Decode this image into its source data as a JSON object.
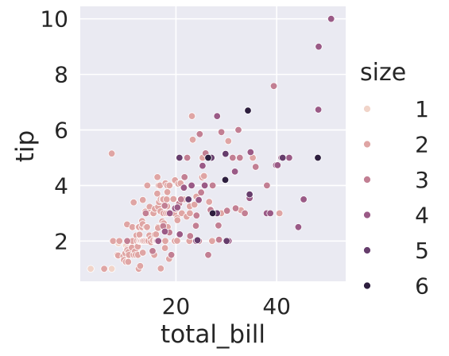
{
  "chart_data": {
    "type": "scatter",
    "title": "",
    "xlabel": "total_bill",
    "ylabel": "tip",
    "xlim": [
      1.0,
      53.7
    ],
    "ylim": [
      0.55,
      10.45
    ],
    "xticks": [
      20,
      40
    ],
    "yticks": [
      2,
      4,
      6,
      8,
      10
    ],
    "grid": true,
    "legend": {
      "title": "size",
      "placement": "right",
      "entries": [
        {
          "label": "1",
          "color": "#f1d4c9"
        },
        {
          "label": "2",
          "color": "#dfa5a4"
        },
        {
          "label": "3",
          "color": "#c27f93"
        },
        {
          "label": "4",
          "color": "#9a5a86"
        },
        {
          "label": "5",
          "color": "#663d6c"
        },
        {
          "label": "6",
          "color": "#2d1e3e"
        }
      ]
    },
    "series": [
      {
        "name": "1",
        "points": [
          [
            3.07,
            1.0
          ],
          [
            7.25,
            1.0
          ],
          [
            8.58,
            1.92
          ],
          [
            10.07,
            1.83
          ]
        ]
      },
      {
        "name": "2",
        "points": [
          [
            5.75,
            1.0
          ],
          [
            7.25,
            5.15
          ],
          [
            7.51,
            2.0
          ],
          [
            8.35,
            1.5
          ],
          [
            8.52,
            1.48
          ],
          [
            8.77,
            2.0
          ],
          [
            9.55,
            1.45
          ],
          [
            9.68,
            1.32
          ],
          [
            9.94,
            1.56
          ],
          [
            10.07,
            1.25
          ],
          [
            10.27,
            1.71
          ],
          [
            10.29,
            2.6
          ],
          [
            10.33,
            1.67
          ],
          [
            10.34,
            2.0
          ],
          [
            10.51,
            1.25
          ],
          [
            10.59,
            1.61
          ],
          [
            10.63,
            2.0
          ],
          [
            10.65,
            1.5
          ],
          [
            11.24,
            1.76
          ],
          [
            11.35,
            2.5
          ],
          [
            11.38,
            2.0
          ],
          [
            11.59,
            1.5
          ],
          [
            11.61,
            3.39
          ],
          [
            11.87,
            1.63
          ],
          [
            12.03,
            1.5
          ],
          [
            12.16,
            2.2
          ],
          [
            12.26,
            2.0
          ],
          [
            12.43,
            1.8
          ],
          [
            12.46,
            1.5
          ],
          [
            12.54,
            2.5
          ],
          [
            12.6,
            1.0
          ],
          [
            12.66,
            2.5
          ],
          [
            12.69,
            2.0
          ],
          [
            12.74,
            2.01
          ],
          [
            12.76,
            2.23
          ],
          [
            12.9,
            1.1
          ],
          [
            13.0,
            2.0
          ],
          [
            13.03,
            2.0
          ],
          [
            13.13,
            2.0
          ],
          [
            13.27,
            2.5
          ],
          [
            13.28,
            2.72
          ],
          [
            13.37,
            2.0
          ],
          [
            13.39,
            2.61
          ],
          [
            13.42,
            1.58
          ],
          [
            13.42,
            3.48
          ],
          [
            13.51,
            2.0
          ],
          [
            13.81,
            2.0
          ],
          [
            13.94,
            3.06
          ],
          [
            14.07,
            2.5
          ],
          [
            14.15,
            2.0
          ],
          [
            14.26,
            2.5
          ],
          [
            14.31,
            4.0
          ],
          [
            14.48,
            2.0
          ],
          [
            14.52,
            2.0
          ],
          [
            14.73,
            2.2
          ],
          [
            14.78,
            3.23
          ],
          [
            14.83,
            3.02
          ],
          [
            15.01,
            2.09
          ],
          [
            15.04,
            1.96
          ],
          [
            15.38,
            3.0
          ],
          [
            15.42,
            1.57
          ],
          [
            15.48,
            2.02
          ],
          [
            15.53,
            3.0
          ],
          [
            15.69,
            1.5
          ],
          [
            15.77,
            2.23
          ],
          [
            15.81,
            3.16
          ],
          [
            15.95,
            2.0
          ],
          [
            15.98,
            2.03
          ],
          [
            16.0,
            2.0
          ],
          [
            16.04,
            2.24
          ],
          [
            16.29,
            3.71
          ],
          [
            16.32,
            4.3
          ],
          [
            16.4,
            2.5
          ],
          [
            16.45,
            2.47
          ],
          [
            16.47,
            3.23
          ],
          [
            16.58,
            4.0
          ],
          [
            16.66,
            3.4
          ],
          [
            16.82,
            4.0
          ],
          [
            16.93,
            3.07
          ],
          [
            16.97,
            3.5
          ],
          [
            16.99,
            1.01
          ],
          [
            17.29,
            2.71
          ],
          [
            17.31,
            3.5
          ],
          [
            17.47,
            3.5
          ],
          [
            17.51,
            3.0
          ],
          [
            17.59,
            2.64
          ],
          [
            17.78,
            3.27
          ],
          [
            17.82,
            1.75
          ],
          [
            17.89,
            2.0
          ],
          [
            17.92,
            4.08
          ],
          [
            18.04,
            3.0
          ],
          [
            18.15,
            3.5
          ],
          [
            18.24,
            3.76
          ],
          [
            18.26,
            3.25
          ],
          [
            18.28,
            4.0
          ],
          [
            18.29,
            3.76
          ],
          [
            18.35,
            2.5
          ],
          [
            18.43,
            3.0
          ],
          [
            18.64,
            1.36
          ],
          [
            18.71,
            4.0
          ],
          [
            19.08,
            1.5
          ],
          [
            19.44,
            3.0
          ],
          [
            19.49,
            3.51
          ],
          [
            19.65,
            3.0
          ],
          [
            19.77,
            2.0
          ],
          [
            19.81,
            4.19
          ],
          [
            19.82,
            3.18
          ],
          [
            20.08,
            3.15
          ],
          [
            20.23,
            2.01
          ],
          [
            20.27,
            2.83
          ],
          [
            20.29,
            2.75
          ],
          [
            20.29,
            3.21
          ],
          [
            20.49,
            4.06
          ],
          [
            20.65,
            3.35
          ],
          [
            20.69,
            5.0
          ],
          [
            20.9,
            3.5
          ],
          [
            20.92,
            4.08
          ],
          [
            21.01,
            3.5
          ],
          [
            21.16,
            3.0
          ],
          [
            21.5,
            3.5
          ],
          [
            21.58,
            3.92
          ],
          [
            22.12,
            2.88
          ],
          [
            22.67,
            2.0
          ],
          [
            22.75,
            3.25
          ],
          [
            22.76,
            3.0
          ],
          [
            23.17,
            6.5
          ],
          [
            23.33,
            5.65
          ],
          [
            23.68,
            3.31
          ],
          [
            24.06,
            3.6
          ],
          [
            25.21,
            4.29
          ],
          [
            25.28,
            5.0
          ],
          [
            25.56,
            4.34
          ],
          [
            26.59,
            3.41
          ],
          [
            26.86,
            3.14
          ],
          [
            27.18,
            2.0
          ],
          [
            28.97,
            3.0
          ],
          [
            30.4,
            5.6
          ],
          [
            32.9,
            3.11
          ],
          [
            35.26,
            5.0
          ],
          [
            40.55,
            3.0
          ]
        ]
      },
      {
        "name": "3",
        "points": [
          [
            10.33,
            2.0
          ],
          [
            14.0,
            3.0
          ],
          [
            16.21,
            2.0
          ],
          [
            16.31,
            2.0
          ],
          [
            17.46,
            2.54
          ],
          [
            17.78,
            3.27
          ],
          [
            18.69,
            2.31
          ],
          [
            19.08,
            1.5
          ],
          [
            20.65,
            3.35
          ],
          [
            21.01,
            3.5
          ],
          [
            21.7,
            4.3
          ],
          [
            22.23,
            5.0
          ],
          [
            22.82,
            2.18
          ],
          [
            23.95,
            2.55
          ],
          [
            24.08,
            2.92
          ],
          [
            24.55,
            2.0
          ],
          [
            24.71,
            5.85
          ],
          [
            25.0,
            3.75
          ],
          [
            25.89,
            5.16
          ],
          [
            26.41,
            1.5
          ],
          [
            26.88,
            3.12
          ],
          [
            28.15,
            3.0
          ],
          [
            28.55,
            2.05
          ],
          [
            29.03,
            5.92
          ],
          [
            29.8,
            4.2
          ],
          [
            30.14,
            3.09
          ],
          [
            31.27,
            5.0
          ],
          [
            31.85,
            3.18
          ],
          [
            32.4,
            6.0
          ],
          [
            32.68,
            5.0
          ],
          [
            33.68,
            3.0
          ],
          [
            34.65,
            3.68
          ],
          [
            35.83,
            4.67
          ],
          [
            39.42,
            7.58
          ],
          [
            15.36,
            1.64
          ],
          [
            27.28,
            4.0
          ],
          [
            28.44,
            2.56
          ],
          [
            38.07,
            4.0
          ]
        ]
      },
      {
        "name": "4",
        "points": [
          [
            16.49,
            2.0
          ],
          [
            17.81,
            2.34
          ],
          [
            18.78,
            3.0
          ],
          [
            19.82,
            3.18
          ],
          [
            20.29,
            3.21
          ],
          [
            20.76,
            2.24
          ],
          [
            21.58,
            3.92
          ],
          [
            23.1,
            4.0
          ],
          [
            24.01,
            2.0
          ],
          [
            24.52,
            3.48
          ],
          [
            25.29,
            4.71
          ],
          [
            25.71,
            4.0
          ],
          [
            28.17,
            6.5
          ],
          [
            29.85,
            5.14
          ],
          [
            30.46,
            2.0
          ],
          [
            31.71,
            4.5
          ],
          [
            34.3,
            6.7
          ],
          [
            34.63,
            3.55
          ],
          [
            34.81,
            5.2
          ],
          [
            38.01,
            3.0
          ],
          [
            38.73,
            3.0
          ],
          [
            39.88,
            4.73
          ],
          [
            44.3,
            2.5
          ],
          [
            48.27,
            6.73
          ],
          [
            48.33,
            9.0
          ],
          [
            50.81,
            10.0
          ],
          [
            45.35,
            3.5
          ],
          [
            42.48,
            5.0
          ],
          [
            40.17,
            4.73
          ],
          [
            40.93,
            5.0
          ]
        ]
      },
      {
        "name": "5",
        "points": [
          [
            20.69,
            5.0
          ],
          [
            24.27,
            2.03
          ],
          [
            28.15,
            3.0
          ],
          [
            29.85,
            5.14
          ],
          [
            30.06,
            2.0
          ],
          [
            34.63,
            3.68
          ],
          [
            41.19,
            5.0
          ],
          [
            27.05,
            5.0
          ],
          [
            22.49,
            3.5
          ]
        ]
      },
      {
        "name": "6",
        "points": [
          [
            26.41,
            5.0
          ],
          [
            27.28,
            3.0
          ],
          [
            29.8,
            4.2
          ],
          [
            34.3,
            6.7
          ],
          [
            48.17,
            5.0
          ]
        ]
      }
    ]
  }
}
